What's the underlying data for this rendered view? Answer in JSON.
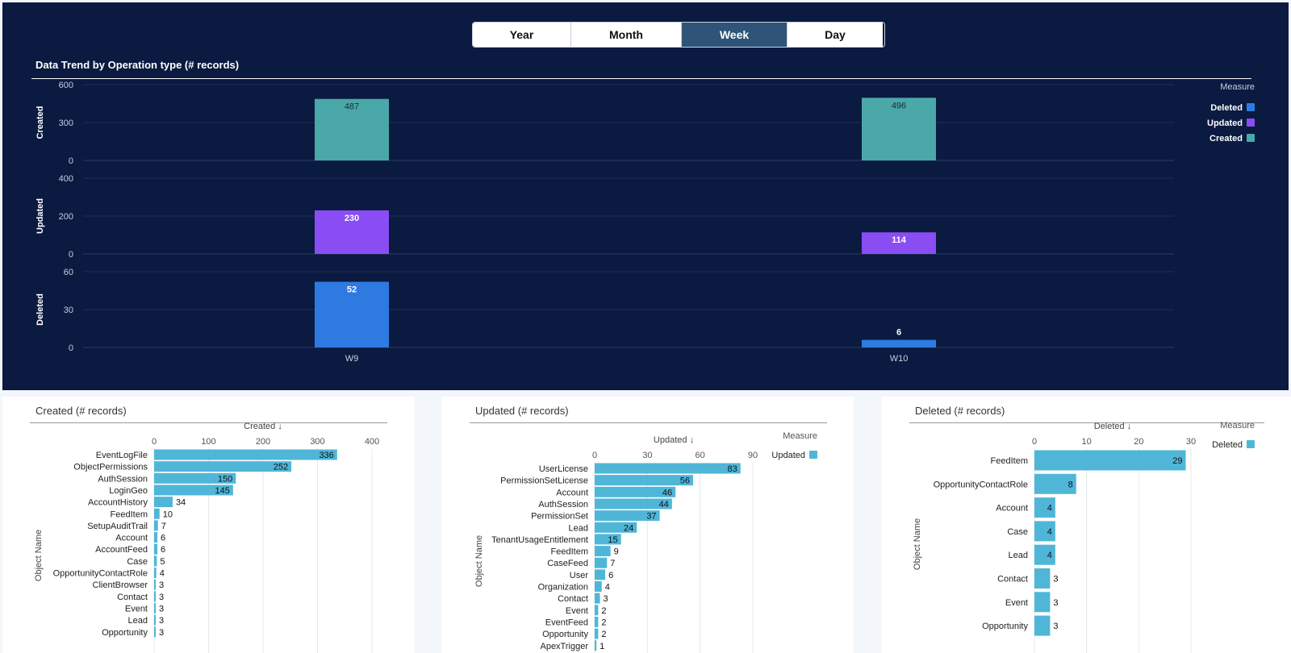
{
  "tabs": [
    {
      "label": "Year",
      "active": false
    },
    {
      "label": "Month",
      "active": false
    },
    {
      "label": "Week",
      "active": true
    },
    {
      "label": "Day",
      "active": false
    }
  ],
  "colors": {
    "deleted": "#2f7ae0",
    "updated": "#8a4df3",
    "created": "#4aa8a8",
    "bar": "#4fb6d8"
  },
  "chart_data": [
    {
      "type": "bar",
      "title": "Data Trend by Operation type (# records)",
      "categories": [
        "W9",
        "W10"
      ],
      "legend_title": "Measure",
      "legend": [
        "Deleted",
        "Updated",
        "Created"
      ],
      "series": [
        {
          "name": "Created",
          "values": [
            487,
            496
          ],
          "ylim": [
            0,
            600
          ],
          "ticks": [
            0,
            300,
            600
          ]
        },
        {
          "name": "Updated",
          "values": [
            230,
            114
          ],
          "ylim": [
            0,
            400
          ],
          "ticks": [
            0,
            200,
            400
          ]
        },
        {
          "name": "Deleted",
          "values": [
            52,
            6
          ],
          "ylim": [
            0,
            60
          ],
          "ticks": [
            0,
            30,
            60
          ]
        }
      ]
    },
    {
      "type": "bar",
      "title": "Created (# records)",
      "xlabel": "Created ↓",
      "ylabel": "Object Name",
      "xlim": [
        0,
        400
      ],
      "ticks": [
        0,
        100,
        200,
        300,
        400
      ],
      "categories": [
        "EventLogFile",
        "ObjectPermissions",
        "AuthSession",
        "LoginGeo",
        "AccountHistory",
        "FeedItem",
        "SetupAuditTrail",
        "Account",
        "AccountFeed",
        "Case",
        "OpportunityContactRole",
        "ClientBrowser",
        "Contact",
        "Event",
        "Lead",
        "Opportunity"
      ],
      "values": [
        336,
        252,
        150,
        145,
        34,
        10,
        7,
        6,
        6,
        5,
        4,
        3,
        3,
        3,
        3,
        3
      ]
    },
    {
      "type": "bar",
      "title": "Updated (# records)",
      "xlabel": "Updated ↓",
      "ylabel": "Object Name",
      "xlim": [
        0,
        90
      ],
      "ticks": [
        0,
        30,
        60,
        90
      ],
      "legend_title": "Measure",
      "legend": [
        "Updated"
      ],
      "categories": [
        "UserLicense",
        "PermissionSetLicense",
        "Account",
        "AuthSession",
        "PermissionSet",
        "Lead",
        "TenantUsageEntitlement",
        "FeedItem",
        "CaseFeed",
        "User",
        "Organization",
        "Contact",
        "Event",
        "EventFeed",
        "Opportunity",
        "ApexTrigger"
      ],
      "values": [
        83,
        56,
        46,
        44,
        37,
        24,
        15,
        9,
        7,
        6,
        4,
        3,
        2,
        2,
        2,
        1
      ]
    },
    {
      "type": "bar",
      "title": "Deleted (# records)",
      "xlabel": "Deleted ↓",
      "ylabel": "Object Name",
      "xlim": [
        0,
        30
      ],
      "ticks": [
        0,
        10,
        20,
        30
      ],
      "legend_title": "Measure",
      "legend": [
        "Deleted"
      ],
      "categories": [
        "FeedItem",
        "OpportunityContactRole",
        "Account",
        "Case",
        "Lead",
        "Contact",
        "Event",
        "Opportunity"
      ],
      "values": [
        29,
        8,
        4,
        4,
        4,
        3,
        3,
        3
      ]
    }
  ]
}
